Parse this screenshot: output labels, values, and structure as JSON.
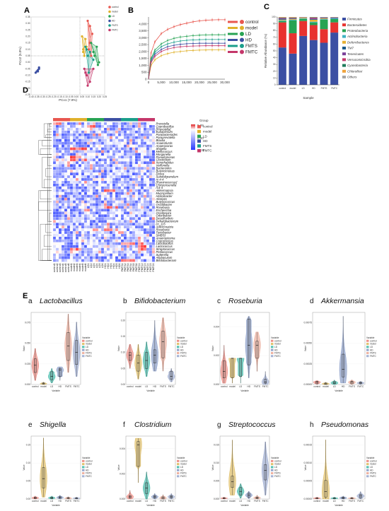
{
  "groups": [
    "control",
    "model",
    "LD",
    "HD",
    "FMTS",
    "FMTC"
  ],
  "group_colors": {
    "control": "#e8574f",
    "model": "#e0b12b",
    "LD": "#27a353",
    "HD": "#3b4fa3",
    "FMTS": "#1a9e8a",
    "FMTC": "#c4376a"
  },
  "panel_labels": {
    "a": "A",
    "b": "B",
    "c": "C",
    "d": "D",
    "e": "E"
  },
  "panelA": {
    "xlabel": "PCo1 (7.9%)",
    "ylabel": "PCo2 (5.0%)",
    "xticks": [
      "-0.40",
      "-0.35",
      "-0.30",
      "-0.25",
      "-0.20",
      "-0.15",
      "-0.10",
      "-0.05",
      "0.00",
      "0.05",
      "0.10",
      "0.15",
      "0.20",
      "0.25"
    ],
    "yticks": [
      "0.35",
      "0.30",
      "0.25",
      "0.20",
      "0.15",
      "0.10",
      "0.05",
      "0.00",
      "-0.05",
      "-0.10",
      "-0.15",
      "-0.20",
      "-0.25"
    ],
    "legend": [
      "control",
      "model",
      "LD",
      "HD",
      "FMTS",
      "FMTC"
    ]
  },
  "panelB": {
    "yticks": [
      "0",
      "500",
      "1,000",
      "1,500",
      "2,000",
      "2,500",
      "3,000",
      "3,500",
      "4,000"
    ],
    "xticks": [
      "0",
      "5,000",
      "10,000",
      "15,000",
      "20,000",
      "25,000",
      "30,000"
    ],
    "legend": [
      "control",
      "model",
      "LD",
      "HD",
      "FMTS",
      "FMTC"
    ]
  },
  "panelC": {
    "ylabel": "Relative Abundance (%)",
    "xlabel": "Sample",
    "yticks": [
      "0",
      "10",
      "20",
      "30",
      "40",
      "50",
      "60",
      "70",
      "80",
      "90",
      "100"
    ],
    "legend": [
      "Firmicutes",
      "Bacteroidetes",
      "Proteobacteria",
      "Actinobacteria",
      "Deferribacteres",
      "TM7",
      "Tenericutes",
      "Verrucomicrobia",
      "Cyanobacteria",
      "Chloroflexi",
      "Others"
    ]
  },
  "panelD": {
    "legend_title": "Group",
    "scale_labels": [
      "5.29",
      "0.00",
      "-1.30"
    ],
    "legend": [
      "control",
      "model",
      "LD",
      "HD",
      "FMTS",
      "FMTC"
    ],
    "rows": [
      "Prevotella",
      "Coprobacillus",
      "[Prevotella]",
      "Eubacterium",
      "Parabacteroides",
      "Paraprevotella",
      "Blautia",
      "Anaerofustis",
      "Anaerovorax",
      "Shigella",
      "Mellococcus",
      "Morganella",
      "Pseudomonas",
      "Clostridium",
      "Xenorhabdus",
      "Veillonella",
      "Bacteroides",
      "Butyricimonas",
      "Dorea",
      "Subdoligranulum",
      "rc-4-4",
      "[Ruminococcus]",
      "Christensenella",
      "rc4-4",
      "Akkermansia",
      "Mucispirillum",
      "Helicobacter",
      "Alistipes",
      "Butyricicoccus",
      "Oscillibacter",
      "Roseburia",
      "Escherichia",
      "Oscillospira",
      "Odoribacter",
      "Desulfovibrio",
      "Dehalobacterium",
      "cc_115",
      "Adlercreutzia",
      "Roseburia",
      "Turicibacter",
      "SMB53",
      "Anaeroplasma",
      "Coprococcus",
      "Lactobacillus",
      "Lactococcus",
      "Streptococcus",
      "Pediococcus",
      "Sutterella",
      "Allobaculum",
      "Bifidobacterium"
    ],
    "cols": [
      "control1",
      "control2",
      "control3",
      "control4",
      "control5",
      "control6",
      "model1",
      "model2",
      "model3",
      "model4",
      "model5",
      "model6",
      "LD1",
      "LD2",
      "LD3",
      "LD4",
      "LD5",
      "LD6",
      "HD1",
      "HD2",
      "HD3",
      "HD4",
      "HD5",
      "HD6",
      "FMTS1",
      "FMTS2",
      "FMTS3",
      "FMTS4",
      "FMTS5",
      "FMTS6",
      "FMTC1",
      "FMTC2",
      "FMTC3",
      "FMTC4",
      "FMTC5",
      "FMTC6"
    ]
  },
  "panelE": {
    "xlabel": "Variable",
    "ylabel": "Value",
    "legend_title": "Variable",
    "x": [
      "control",
      "model",
      "LD",
      "HD",
      "FMTS",
      "FMTC"
    ],
    "plots": [
      {
        "letter": "a",
        "title": "Lactobacillus",
        "yticks": [
          "0.000",
          "0.025",
          "0.050",
          "0.075"
        ]
      },
      {
        "letter": "b",
        "title": "Bifidobacterium",
        "yticks": [
          "0.00",
          "0.05",
          "0.10",
          "0.15",
          "0.20"
        ]
      },
      {
        "letter": "c",
        "title": "Roseburia",
        "yticks": [
          "0.000",
          "0.002",
          "0.004"
        ]
      },
      {
        "letter": "d",
        "title": "Akkermansia",
        "yticks": [
          "0.00000",
          "0.00025",
          "0.00050",
          "0.00075"
        ]
      },
      {
        "letter": "e",
        "title": "Shigella",
        "yticks": [
          "0.00",
          "0.05",
          "0.10",
          "0.15"
        ]
      },
      {
        "letter": "f",
        "title": "Clostridium",
        "yticks": [
          "0.000",
          "0.002",
          "0.004"
        ]
      },
      {
        "letter": "g",
        "title": "Streptococcus",
        "yticks": [
          "0.000",
          "0.005",
          "0.010",
          "0.015"
        ]
      },
      {
        "letter": "h",
        "title": "Pseudomonas",
        "yticks": [
          "0.00000",
          "0.00005",
          "0.00010",
          "0.00015"
        ]
      }
    ]
  },
  "chart_data": [
    {
      "type": "scatter",
      "panel": "A",
      "xlabel": "PCo1 (7.9%)",
      "ylabel": "PCo2 (5.0%)",
      "xlim": [
        -0.4,
        0.25
      ],
      "ylim": [
        -0.25,
        0.35
      ],
      "series": [
        {
          "name": "control",
          "x": [
            0.1,
            0.12,
            0.14,
            0.11,
            0.13,
            0.12
          ],
          "y": [
            0.32,
            0.28,
            0.22,
            0.1,
            0.05,
            0.15
          ]
        },
        {
          "name": "model",
          "x": [
            0.05,
            0.06,
            0.08,
            0.07,
            0.09,
            0.06
          ],
          "y": [
            0.2,
            0.1,
            0.18,
            0.05,
            0.12,
            0.08
          ]
        },
        {
          "name": "LD",
          "x": [
            0.13,
            0.16,
            0.19,
            0.15,
            0.2,
            0.18
          ],
          "y": [
            0.15,
            0.05,
            -0.02,
            0.08,
            0.0,
            0.12
          ]
        },
        {
          "name": "HD",
          "x": [
            -0.35,
            -0.34,
            -0.33,
            -0.36,
            -0.34,
            -0.33
          ],
          "y": [
            -0.07,
            -0.06,
            -0.05,
            -0.08,
            -0.07,
            -0.04
          ]
        },
        {
          "name": "FMTS",
          "x": [
            0.08,
            0.1,
            0.12,
            0.15,
            0.11,
            0.09
          ],
          "y": [
            0.12,
            0.05,
            0.08,
            0.02,
            -0.08,
            0.1
          ]
        },
        {
          "name": "FMTC",
          "x": [
            0.07,
            0.09,
            0.12,
            0.15,
            0.1,
            0.08
          ],
          "y": [
            -0.05,
            -0.1,
            -0.15,
            -0.05,
            -0.18,
            -0.08
          ]
        }
      ]
    },
    {
      "type": "line",
      "panel": "B",
      "ylim": [
        0,
        4500
      ],
      "xlim": [
        0,
        30000
      ],
      "x": [
        0,
        1000,
        2500,
        5000,
        7500,
        10000,
        12500,
        15000,
        17500,
        20000,
        22500,
        25000,
        27500,
        30000
      ],
      "series": [
        {
          "name": "control",
          "values": [
            0,
            1900,
            2700,
            3300,
            3600,
            3800,
            3950,
            4050,
            4150,
            4220,
            4260,
            4290,
            4300,
            4300
          ]
        },
        {
          "name": "model",
          "values": [
            0,
            1000,
            1400,
            1700,
            1850,
            1950,
            2000,
            2050,
            2080,
            2100,
            2110,
            2120,
            2120,
            2120
          ]
        },
        {
          "name": "LD",
          "values": [
            0,
            1500,
            2100,
            2550,
            2800,
            2950,
            3050,
            3100,
            3150,
            3180,
            3200,
            3210,
            3210,
            3210
          ]
        },
        {
          "name": "HD",
          "values": [
            0,
            1300,
            1800,
            2150,
            2350,
            2450,
            2520,
            2560,
            2580,
            2600,
            2600,
            2600,
            2600,
            2600
          ]
        },
        {
          "name": "FMTS",
          "values": [
            0,
            1400,
            1950,
            2350,
            2550,
            2680,
            2760,
            2810,
            2840,
            2860,
            2870,
            2870,
            2870,
            2870
          ]
        },
        {
          "name": "FMTC",
          "values": [
            0,
            1200,
            1650,
            2000,
            2180,
            2280,
            2340,
            2380,
            2400,
            2410,
            2420,
            2420,
            2420,
            2420
          ]
        }
      ]
    },
    {
      "type": "bar",
      "panel": "C",
      "stacked": true,
      "xlabel": "Sample",
      "ylabel": "Relative Abundance (%)",
      "ylim": [
        0,
        100
      ],
      "categories": [
        "control",
        "model",
        "LD",
        "HD",
        "FMTS",
        "FMTC"
      ],
      "series": [
        {
          "name": "Firmicutes",
          "values": [
            55,
            46,
            72,
            66,
            62,
            77
          ]
        },
        {
          "name": "Bacteroidetes",
          "values": [
            37,
            30,
            22,
            22,
            20,
            15
          ]
        },
        {
          "name": "Proteobacteria",
          "values": [
            2,
            19,
            3,
            4,
            14,
            5
          ]
        },
        {
          "name": "Actinobacteria",
          "values": [
            1,
            1,
            1,
            1,
            1,
            1
          ]
        },
        {
          "name": "Deferribacteres",
          "values": [
            1,
            1,
            1,
            3,
            1,
            0
          ]
        },
        {
          "name": "TM7",
          "values": [
            1,
            0.5,
            0.3,
            1,
            0.5,
            0.5
          ]
        },
        {
          "name": "Tenericutes",
          "values": [
            1,
            0.5,
            0.2,
            1,
            0.5,
            0.5
          ]
        },
        {
          "name": "Verrucomicrobia",
          "values": [
            0.5,
            0.5,
            0.2,
            1,
            0.3,
            0.3
          ]
        },
        {
          "name": "Cyanobacteria",
          "values": [
            0.5,
            0.5,
            0.1,
            0.5,
            0.3,
            0.3
          ]
        },
        {
          "name": "Chloroflexi",
          "values": [
            0.5,
            0.5,
            0.1,
            0.3,
            0.2,
            0.2
          ]
        },
        {
          "name": "Others",
          "values": [
            0.5,
            0.5,
            0.1,
            0.2,
            0.2,
            0.2
          ]
        }
      ]
    },
    {
      "type": "heatmap",
      "panel": "D",
      "scale": [
        -1.3,
        0.0,
        5.29
      ]
    },
    {
      "type": "violin",
      "panel": "E",
      "categories": [
        "control",
        "model",
        "LD",
        "HD",
        "FMTS",
        "FMTC"
      ],
      "plots": [
        {
          "title": "Lactobacillus",
          "ylim": [
            0,
            0.09
          ],
          "medians": [
            0.024,
            0.001,
            0.01,
            0.018,
            0.048,
            0.04
          ],
          "q1": [
            0.015,
            0.0005,
            0.006,
            0.01,
            0.03,
            0.025
          ],
          "q3": [
            0.032,
            0.002,
            0.016,
            0.02,
            0.065,
            0.055
          ],
          "min": [
            0.005,
            0,
            0.002,
            0.005,
            0.015,
            0.01
          ],
          "max": [
            0.045,
            0.003,
            0.02,
            0.022,
            0.088,
            0.078
          ]
        },
        {
          "title": "Bifidobacterium",
          "ylim": [
            0,
            0.27
          ],
          "medians": [
            0.11,
            0.08,
            0.09,
            0.11,
            0.16,
            0.03
          ],
          "q1": [
            0.09,
            0.05,
            0.06,
            0.08,
            0.1,
            0.02
          ],
          "q3": [
            0.12,
            0.11,
            0.12,
            0.13,
            0.2,
            0.05
          ],
          "min": [
            0.06,
            0.02,
            0.03,
            0.05,
            0.05,
            0.01
          ],
          "max": [
            0.15,
            0.15,
            0.16,
            0.24,
            0.25,
            0.06
          ]
        },
        {
          "title": "Roseburia",
          "ylim": [
            0,
            0.0055
          ],
          "medians": [
            0.001,
            0.002,
            0.002,
            0.003,
            0.003,
            0.0002
          ],
          "q1": [
            0.0005,
            0.0005,
            0.0006,
            0.0015,
            0.002,
            0.0001
          ],
          "q3": [
            0.0018,
            0.002,
            0.002,
            0.005,
            0.0033,
            0.0004
          ],
          "min": [
            0.0001,
            0.0001,
            0.0001,
            0.0005,
            0.001,
            0
          ],
          "max": [
            0.003,
            0.002,
            0.002,
            0.0052,
            0.004,
            0.001
          ]
        },
        {
          "title": "Akkermansia",
          "ylim": [
            0,
            0.00095
          ],
          "medians": [
            3e-05,
            1e-05,
            2e-05,
            0.0002,
            3e-05,
            2e-05
          ],
          "q1": [
            1e-05,
            0,
            1e-05,
            0.0001,
            1e-05,
            1e-05
          ],
          "q3": [
            4e-05,
            2e-05,
            4e-05,
            0.0004,
            4e-05,
            3e-05
          ],
          "min": [
            0,
            0,
            0,
            2e-05,
            0,
            0
          ],
          "max": [
            5e-05,
            3e-05,
            6e-05,
            0.0009,
            6e-05,
            4e-05
          ]
        },
        {
          "title": "Shigella",
          "ylim": [
            0,
            0.17
          ],
          "medians": [
            0.003,
            0.055,
            0.003,
            0.004,
            0.002,
            0.002
          ],
          "q1": [
            0.001,
            0.03,
            0.001,
            0.002,
            0.001,
            0.001
          ],
          "q3": [
            0.005,
            0.085,
            0.005,
            0.006,
            0.004,
            0.003
          ],
          "min": [
            0,
            0.005,
            0,
            0,
            0,
            0
          ],
          "max": [
            0.008,
            0.165,
            0.008,
            0.01,
            0.006,
            0.005
          ]
        },
        {
          "title": "Clostridium",
          "ylim": [
            0,
            0.0058
          ],
          "medians": [
            0.0002,
            0.005,
            0.001,
            0.0002,
            0.0001,
            0.0002
          ],
          "q1": [
            0.0001,
            0.003,
            0.0005,
            0.0001,
            0,
            0.0001
          ],
          "q3": [
            0.0003,
            0.0053,
            0.0015,
            0.0003,
            0.0002,
            0.0003
          ],
          "min": [
            0,
            0.0015,
            0,
            0,
            0,
            0
          ],
          "max": [
            0.0008,
            0.0056,
            0.0025,
            0.0005,
            0.0004,
            0.0005
          ]
        },
        {
          "title": "Streptococcus",
          "ylim": [
            0,
            0.0165
          ],
          "medians": [
            0.0002,
            0.0045,
            0.002,
            0.001,
            0.0003,
            0.0075
          ],
          "q1": [
            0.0001,
            0.003,
            0.001,
            0.0005,
            0.0001,
            0.005
          ],
          "q3": [
            0.0003,
            0.006,
            0.003,
            0.0015,
            0.0005,
            0.009
          ],
          "min": [
            0,
            0.001,
            0.0002,
            0.0001,
            0,
            0.001
          ],
          "max": [
            0.0005,
            0.0155,
            0.004,
            0.002,
            0.001,
            0.015
          ]
        },
        {
          "title": "Pseudomonas",
          "ylim": [
            0,
            0.00017
          ],
          "medians": [
            2e-06,
            2e-05,
            2e-06,
            3e-06,
            2e-06,
            8e-06
          ],
          "q1": [
            1e-06,
            5e-06,
            1e-06,
            1e-06,
            1e-06,
            3e-06
          ],
          "q3": [
            3e-06,
            5e-05,
            3e-06,
            5e-06,
            3e-06,
            1.2e-05
          ],
          "min": [
            0,
            0,
            0,
            0,
            0,
            0
          ],
          "max": [
            5e-06,
            0.00016,
            5e-06,
            8e-06,
            5e-06,
            2e-05
          ]
        }
      ]
    }
  ],
  "phylum_colors": [
    "#3b4fa3",
    "#e8322f",
    "#27a353",
    "#3eb3c3",
    "#e6b032",
    "#1b5a8a",
    "#7a3f98",
    "#c4376a",
    "#1f7b5a",
    "#f0a33b",
    "#a6a6a6"
  ]
}
